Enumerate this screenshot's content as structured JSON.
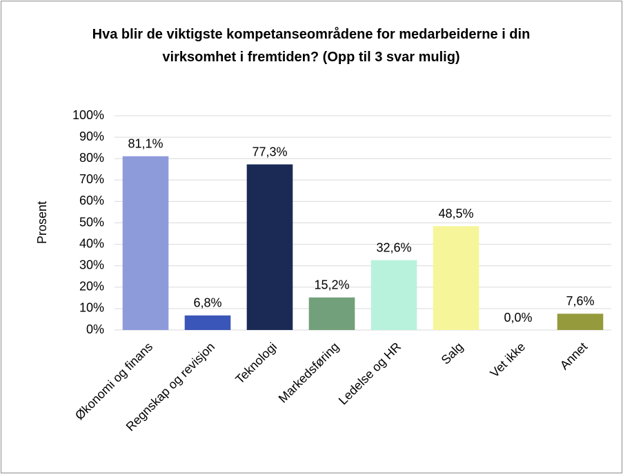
{
  "chart_data": {
    "type": "bar",
    "title": "Hva blir de viktigste kompetanseområdene for medarbeiderne i din virksomhet i fremtiden? (Opp til 3 svar mulig)",
    "ylabel": "Prosent",
    "categories": [
      "Økonomi og finans",
      "Regnskap og revisjon",
      "Teknologi",
      "Markedsføring",
      "Ledelse og HR",
      "Salg",
      "Vet ikke",
      "Annet"
    ],
    "values": [
      81.1,
      6.8,
      77.3,
      15.2,
      32.6,
      48.5,
      0.0,
      7.6
    ],
    "value_labels": [
      "81,1%",
      "6,8%",
      "77,3%",
      "15,2%",
      "32,6%",
      "48,5%",
      "0,0%",
      "7,6%"
    ],
    "colors": [
      "#8e9bdb",
      "#3a56b8",
      "#1a2a55",
      "#72a07a",
      "#b8f2dd",
      "#f7f59a",
      "#cccccc",
      "#959a3c"
    ],
    "ylim": [
      0,
      100
    ],
    "yticks": [
      {
        "value": 0,
        "label": "0%"
      },
      {
        "value": 10,
        "label": "10%"
      },
      {
        "value": 20,
        "label": "20%"
      },
      {
        "value": 30,
        "label": "30%"
      },
      {
        "value": 40,
        "label": "40%"
      },
      {
        "value": 50,
        "label": "50%"
      },
      {
        "value": 60,
        "label": "60%"
      },
      {
        "value": 70,
        "label": "70%"
      },
      {
        "value": 80,
        "label": "80%"
      },
      {
        "value": 90,
        "label": "90%"
      },
      {
        "value": 100,
        "label": "100%"
      }
    ],
    "grid": true
  }
}
